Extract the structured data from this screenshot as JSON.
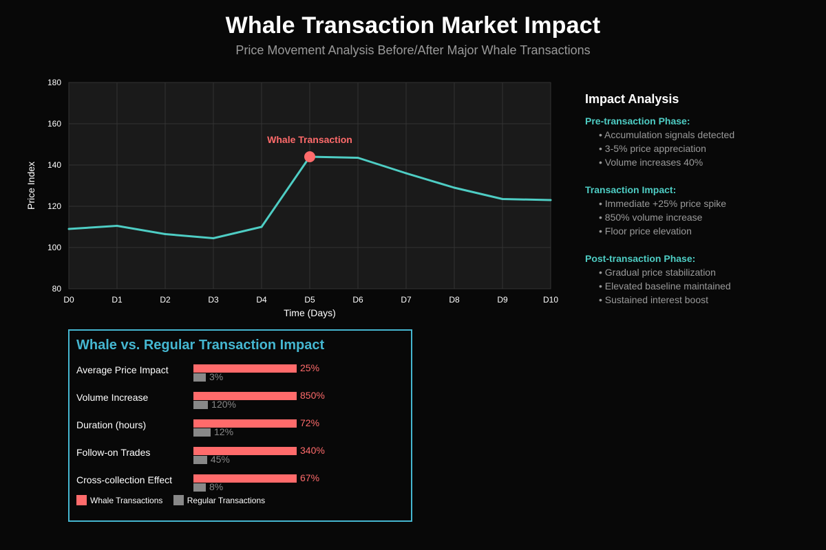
{
  "header": {
    "title": "Whale Transaction Market Impact",
    "subtitle": "Price Movement Analysis Before/After Major Whale Transactions"
  },
  "colors": {
    "line": "#4ecdc4",
    "whale": "#ff6b6b",
    "regular": "#888888",
    "panel_border": "#45b7d1",
    "phase_title": "#4ecdc4"
  },
  "chart_data": [
    {
      "type": "line",
      "title": "",
      "xlabel": "Time (Days)",
      "ylabel": "Price Index",
      "categories": [
        "D0",
        "D1",
        "D2",
        "D3",
        "D4",
        "D5",
        "D6",
        "D7",
        "D8",
        "D9",
        "D10"
      ],
      "series": [
        {
          "name": "Price Index",
          "values": [
            109,
            110.5,
            106.5,
            104.5,
            110,
            144,
            143.5,
            136,
            129,
            123.5,
            123
          ]
        }
      ],
      "yticks": [
        80,
        100,
        120,
        140,
        160,
        180
      ],
      "ylim": [
        80,
        180
      ],
      "grid": true,
      "annotations": [
        {
          "label": "Whale Transaction",
          "x": "D5",
          "y": 144
        }
      ]
    },
    {
      "type": "bar",
      "title": "Whale vs. Regular Transaction Impact",
      "categories": [
        "Average Price Impact",
        "Volume Increase",
        "Duration (hours)",
        "Follow-on Trades",
        "Cross-collection Effect"
      ],
      "series": [
        {
          "name": "Whale Transactions",
          "values": [
            25,
            850,
            72,
            340,
            67
          ],
          "labels": [
            "25%",
            "850%",
            "72%",
            "340%",
            "67%"
          ]
        },
        {
          "name": "Regular Transactions",
          "values": [
            3,
            120,
            12,
            45,
            8
          ],
          "labels": [
            "3%",
            "120%",
            "12%",
            "45%",
            "8%"
          ]
        }
      ],
      "legend": [
        "Whale Transactions",
        "Regular Transactions"
      ]
    }
  ],
  "analysis": {
    "title": "Impact Analysis",
    "phases": [
      {
        "title": "Pre-transaction Phase:",
        "items": [
          "• Accumulation signals detected",
          "• 3-5% price appreciation",
          "• Volume increases 40%"
        ]
      },
      {
        "title": "Transaction Impact:",
        "items": [
          "• Immediate +25% price spike",
          "• 850% volume increase",
          "• Floor price elevation"
        ]
      },
      {
        "title": "Post-transaction Phase:",
        "items": [
          "• Gradual price stabilization",
          "• Elevated baseline maintained",
          "• Sustained interest boost"
        ]
      }
    ]
  }
}
